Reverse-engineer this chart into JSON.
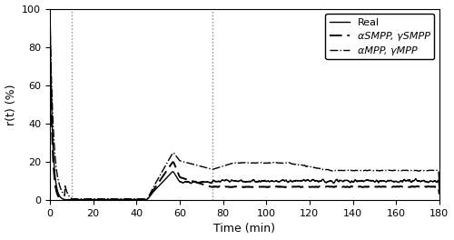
{
  "title": "",
  "xlabel": "Time (min)",
  "ylabel": "r(t) (%)",
  "xlim": [
    0,
    180
  ],
  "ylim": [
    0,
    100
  ],
  "xticks": [
    0,
    20,
    40,
    60,
    80,
    100,
    120,
    140,
    160,
    180
  ],
  "yticks": [
    0,
    20,
    40,
    60,
    80,
    100
  ],
  "vlines": [
    10,
    75
  ],
  "legend": [
    "Real",
    "αSMPP, γSMPP",
    "αMPP, γMPP"
  ],
  "background_color": "#ffffff",
  "figsize": [
    5.0,
    2.64
  ],
  "dpi": 100
}
